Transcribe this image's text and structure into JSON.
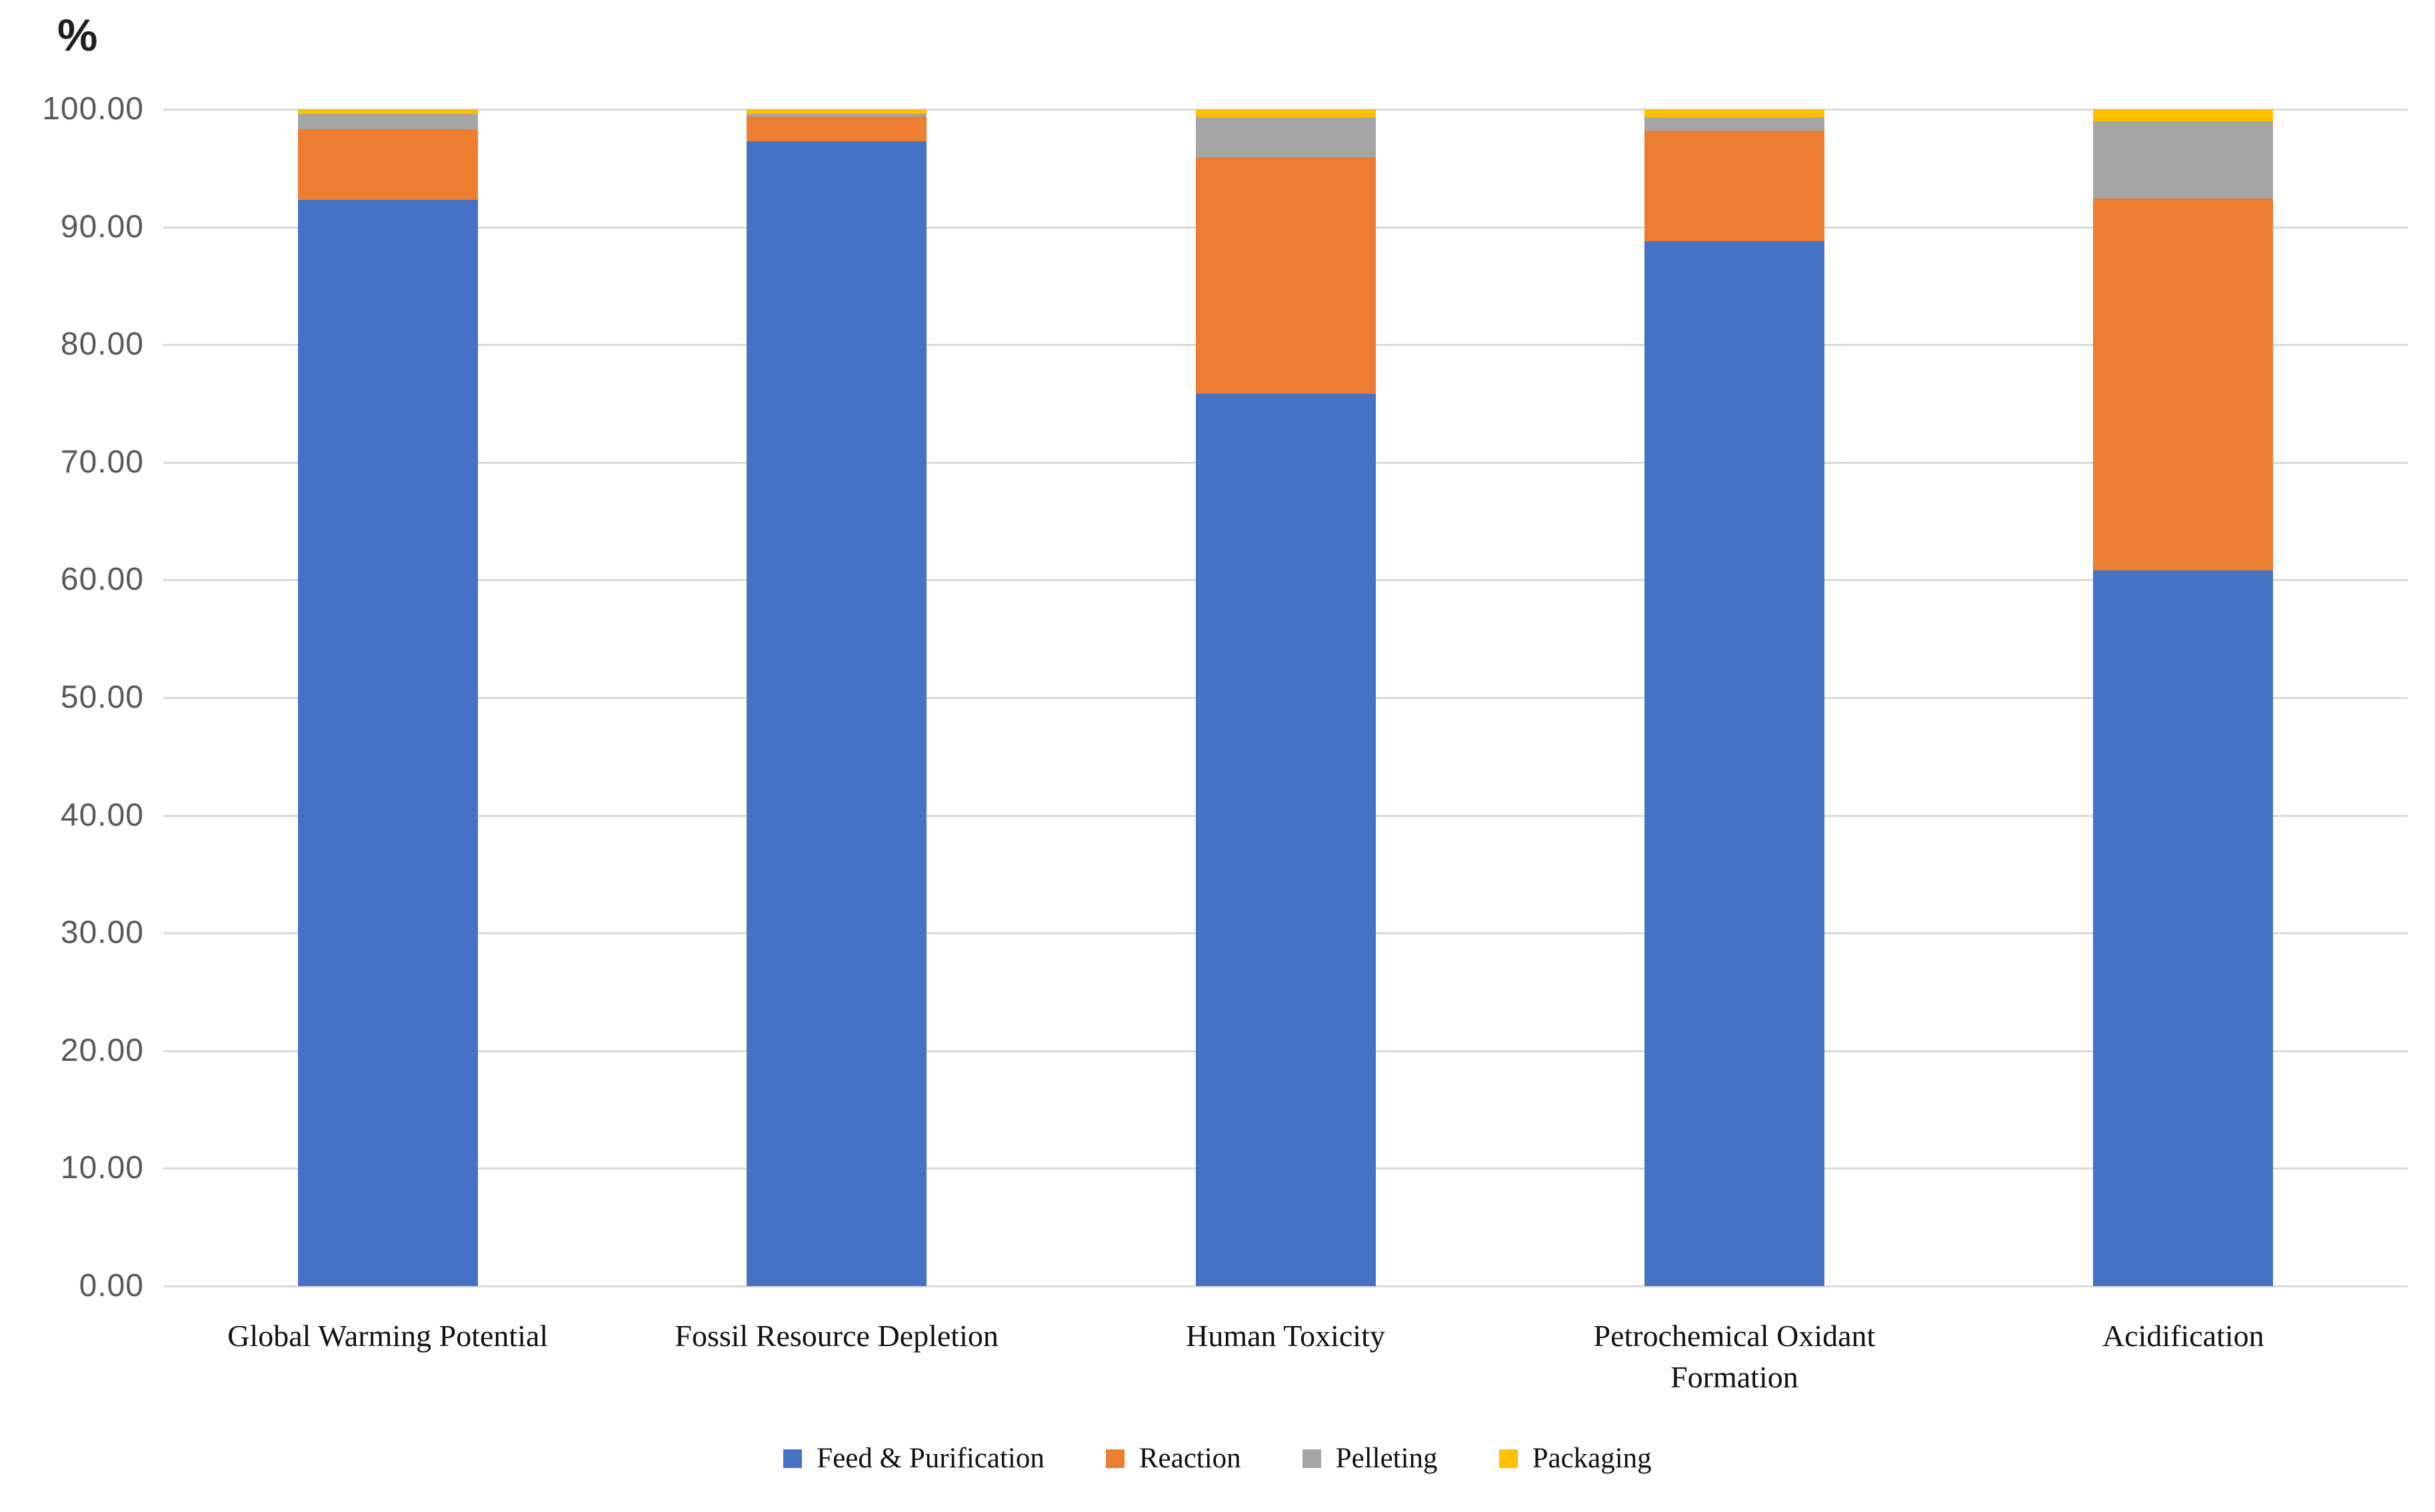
{
  "chart_data": {
    "type": "bar",
    "stacked": true,
    "orientation": "vertical",
    "y_axis_title": "%",
    "categories": [
      "Global Warming Potential",
      "Fossil Resource Depletion",
      "Human Toxicity",
      "Petrochemical Oxidant Formation",
      "Acidification"
    ],
    "series": [
      {
        "name": "Feed & Purification",
        "color": "#4472C4",
        "values": [
          92.3,
          97.3,
          75.8,
          88.8,
          60.8
        ]
      },
      {
        "name": "Reaction",
        "color": "#ED7D31",
        "values": [
          6.0,
          2.1,
          20.1,
          9.4,
          31.6
        ]
      },
      {
        "name": "Pelleting",
        "color": "#A5A5A5",
        "values": [
          1.3,
          0.2,
          3.4,
          1.1,
          6.6
        ]
      },
      {
        "name": "Packaging",
        "color": "#FFC000",
        "values": [
          0.4,
          0.4,
          0.7,
          0.7,
          1.0
        ]
      }
    ],
    "ylim": [
      0,
      100
    ],
    "y_tick_step": 10,
    "y_tick_labels": [
      "0.00",
      "10.00",
      "20.00",
      "30.00",
      "40.00",
      "50.00",
      "60.00",
      "70.00",
      "80.00",
      "90.00",
      "100.00"
    ],
    "grid": true,
    "gridline_color": "#d9d9d9",
    "tick_label_color": "#595959",
    "legend_position": "bottom"
  }
}
